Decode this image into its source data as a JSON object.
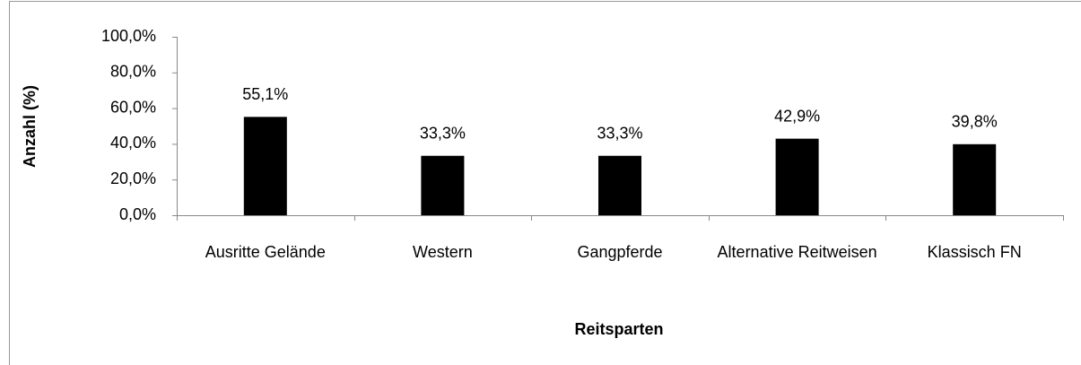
{
  "chart_data": {
    "type": "bar",
    "x_label": "Reitsparten",
    "y_label": "Anzahl (%)",
    "categories": [
      "Ausritte Gelände",
      "Western",
      "Gangpferde",
      "Alternative Reitweisen",
      "Klassisch FN"
    ],
    "values": [
      55.1,
      33.3,
      33.3,
      42.9,
      39.8
    ],
    "value_labels": [
      "55,1%",
      "33,3%",
      "33,3%",
      "42,9%",
      "39,8%"
    ],
    "color": "#000000",
    "ylim": [
      0,
      100
    ],
    "yticks": [
      {
        "value": 0,
        "label": "0,0%"
      },
      {
        "value": 20,
        "label": "20,0%"
      },
      {
        "value": 40,
        "label": "40,0%"
      },
      {
        "value": 60,
        "label": "60,0%"
      },
      {
        "value": 80,
        "label": "80,0%"
      },
      {
        "value": 100,
        "label": "100,0%"
      }
    ],
    "grid": false
  }
}
